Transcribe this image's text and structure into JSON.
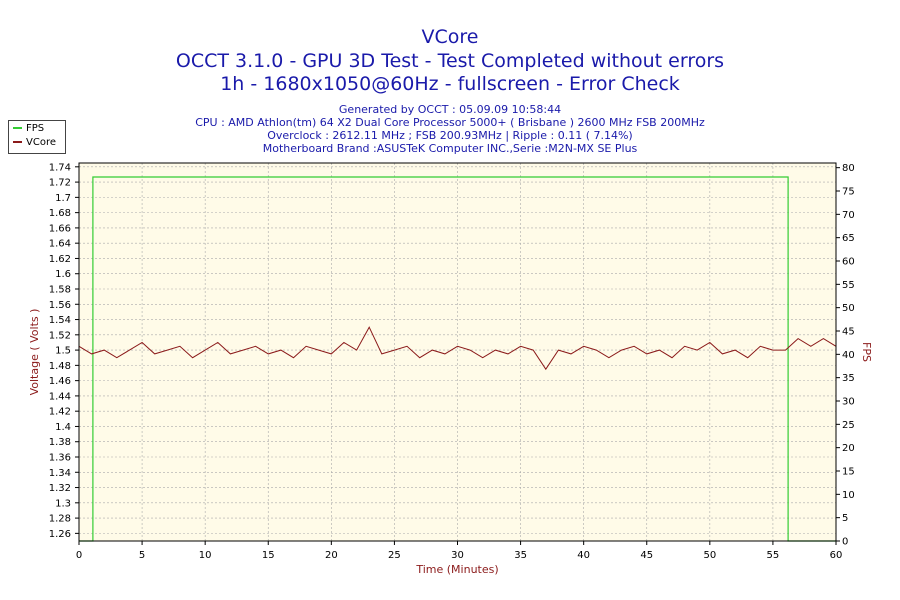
{
  "header": {
    "title_line1": "VCore",
    "title_line2": "OCCT 3.1.0 - GPU 3D Test - Test Completed without errors",
    "title_line3": "1h - 1680x1050@60Hz - fullscreen - Error Check",
    "info_line1": "Generated by OCCT : 05.09.09 10:58:44",
    "info_line2": "CPU : AMD Athlon(tm) 64 X2 Dual Core Processor 5000+ ( Brisbane ) 2600 MHz FSB 200MHz",
    "info_line3": "Overclock : 2612.11 MHz ; FSB 200.93MHz | Ripple : 0.11 ( 7.14%)",
    "info_line4": "Motherboard Brand :ASUSTeK Computer INC.,Serie :M2N-MX SE Plus"
  },
  "legend": {
    "fps_label": "FPS",
    "vcore_label": "VCore",
    "placement": "top-left"
  },
  "colors": {
    "fps": "#33cc33",
    "vcore": "#8b1a1a",
    "plot_bg": "#fffbe8",
    "grid": "#aaaaaa",
    "title": "#1a1aaa"
  },
  "chart_data": {
    "type": "line",
    "xlabel": "Time (Minutes)",
    "ylabel": "Voltage ( Volts )",
    "y2label": "FPS",
    "xlim": [
      0,
      60
    ],
    "ylim": [
      1.25,
      1.745
    ],
    "y2lim": [
      0,
      81
    ],
    "grid": true,
    "x_ticks": [
      0,
      5,
      10,
      15,
      20,
      25,
      30,
      35,
      40,
      45,
      50,
      55,
      60
    ],
    "y_ticks": [
      1.26,
      1.28,
      1.3,
      1.32,
      1.34,
      1.36,
      1.38,
      1.4,
      1.42,
      1.44,
      1.46,
      1.48,
      1.5,
      1.52,
      1.54,
      1.56,
      1.58,
      1.6,
      1.62,
      1.64,
      1.66,
      1.68,
      1.7,
      1.72,
      1.74
    ],
    "y2_ticks": [
      0,
      5,
      10,
      15,
      20,
      25,
      30,
      35,
      40,
      45,
      50,
      55,
      60,
      65,
      70,
      75,
      80
    ],
    "series": [
      {
        "name": "FPS",
        "axis": "right",
        "x": [
          0,
          1.1,
          1.1,
          3,
          6,
          9,
          12,
          15,
          18,
          21,
          24,
          27,
          30,
          33,
          36,
          39,
          42,
          45,
          48,
          51,
          54,
          56.2,
          56.2,
          60
        ],
        "values": [
          0,
          0,
          78,
          78,
          78,
          78,
          78,
          78,
          78,
          78,
          78,
          78,
          78,
          78,
          78,
          78,
          78,
          78,
          78,
          78,
          78,
          78,
          0,
          0
        ]
      },
      {
        "name": "VCore",
        "axis": "left",
        "x": [
          0,
          1,
          2,
          3,
          4,
          5,
          6,
          7,
          8,
          9,
          10,
          11,
          12,
          13,
          14,
          15,
          16,
          17,
          18,
          19,
          20,
          21,
          22,
          23,
          24,
          25,
          26,
          27,
          28,
          29,
          30,
          31,
          32,
          33,
          34,
          35,
          36,
          37,
          38,
          39,
          40,
          41,
          42,
          43,
          44,
          45,
          46,
          47,
          48,
          49,
          50,
          51,
          52,
          53,
          54,
          55,
          56,
          57,
          58,
          59,
          60
        ],
        "values": [
          1.505,
          1.495,
          1.5,
          1.49,
          1.5,
          1.51,
          1.495,
          1.5,
          1.505,
          1.49,
          1.5,
          1.51,
          1.495,
          1.5,
          1.505,
          1.495,
          1.5,
          1.49,
          1.505,
          1.5,
          1.495,
          1.51,
          1.5,
          1.53,
          1.495,
          1.5,
          1.505,
          1.49,
          1.5,
          1.495,
          1.505,
          1.5,
          1.49,
          1.5,
          1.495,
          1.505,
          1.5,
          1.475,
          1.5,
          1.495,
          1.505,
          1.5,
          1.49,
          1.5,
          1.505,
          1.495,
          1.5,
          1.49,
          1.505,
          1.5,
          1.51,
          1.495,
          1.5,
          1.49,
          1.505,
          1.5,
          1.5,
          1.515,
          1.505,
          1.515,
          1.505
        ]
      }
    ]
  }
}
